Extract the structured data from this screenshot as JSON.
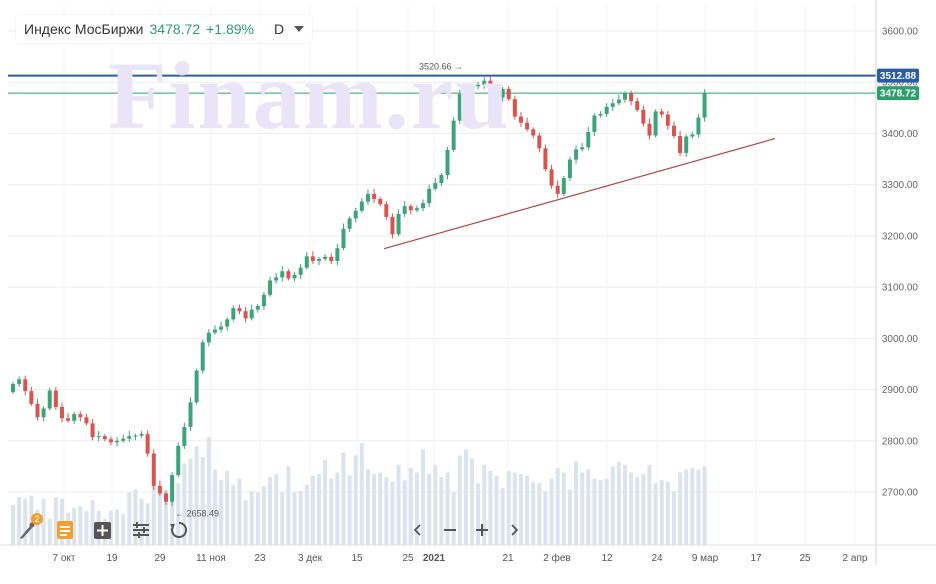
{
  "legend": {
    "ticker": "Индекс МосБиржи",
    "price": "3478.72",
    "change": "+1.89%",
    "timeframe": "D"
  },
  "watermark": "Finam.ru",
  "toolbar": {
    "badge_count": "2"
  },
  "colors": {
    "up": "#3fa37a",
    "down": "#d9534f",
    "volume": "#dbe3ee",
    "resistance_line": "#2b5ca8",
    "price_line": "#2e9e6e",
    "trend_line": "#b0474a"
  },
  "chart_data": {
    "type": "candlestick",
    "title": "Индекс МосБиржи",
    "timeframe": "D",
    "y_axis": {
      "range": [
        2620,
        3640
      ],
      "ticks": [
        "3600.00",
        "3500.00",
        "3400.00",
        "3300.00",
        "3200.00",
        "3100.00",
        "3000.00",
        "2900.00",
        "2800.00",
        "2700.00"
      ]
    },
    "x_axis": {
      "ticks": [
        "7 окт",
        "19",
        "29",
        "11 ноя",
        "23",
        "3 дек",
        "15",
        "25",
        "2021",
        "21",
        "2 фев",
        "12",
        "24",
        "9 мар",
        "17",
        "25",
        "2 апр"
      ]
    },
    "last_price": 3478.72,
    "resistance_level": 3512.88,
    "price_labels": {
      "resistance": "3512.88",
      "last": "3478.72"
    },
    "annotations": [
      {
        "text": "3520.66",
        "value": 3520.66
      },
      {
        "text": "2658.49",
        "value": 2658.49
      }
    ],
    "trend_line": {
      "from": [
        "15 дек",
        3175
      ],
      "to": [
        "17 мар",
        3390
      ]
    },
    "candles_close": [
      2911,
      2920,
      2897,
      2872,
      2846,
      2863,
      2898,
      2866,
      2844,
      2839,
      2852,
      2846,
      2834,
      2807,
      2809,
      2803,
      2797,
      2800,
      2804,
      2809,
      2810,
      2813,
      2775,
      2712,
      2697,
      2681,
      2733,
      2790,
      2827,
      2875,
      2937,
      2992,
      3011,
      3017,
      3023,
      3037,
      3059,
      3053,
      3039,
      3056,
      3063,
      3085,
      3113,
      3119,
      3131,
      3117,
      3124,
      3138,
      3160,
      3151,
      3155,
      3159,
      3151,
      3176,
      3214,
      3234,
      3249,
      3267,
      3282,
      3272,
      3262,
      3237,
      3203,
      3243,
      3258,
      3250,
      3254,
      3264,
      3292,
      3303,
      3319,
      3368,
      3425,
      3477,
      3471,
      3492,
      3495,
      3503,
      3486,
      3470,
      3487,
      3467,
      3433,
      3421,
      3408,
      3396,
      3371,
      3330,
      3298,
      3282,
      3313,
      3349,
      3369,
      3373,
      3403,
      3435,
      3438,
      3452,
      3459,
      3466,
      3478,
      3463,
      3446,
      3419,
      3396,
      3443,
      3437,
      3415,
      3395,
      3362,
      3394,
      3398,
      3431,
      3478
    ],
    "volume": [
      26,
      31,
      30,
      32,
      23,
      30,
      17,
      31,
      30,
      21,
      24,
      25,
      22,
      29,
      22,
      17,
      22,
      23,
      20,
      34,
      36,
      30,
      27,
      44,
      33,
      36,
      45,
      40,
      53,
      56,
      64,
      57,
      70,
      49,
      42,
      48,
      39,
      43,
      29,
      35,
      34,
      38,
      44,
      46,
      34,
      51,
      34,
      35,
      39,
      45,
      46,
      55,
      43,
      47,
      60,
      45,
      58,
      66,
      49,
      46,
      47,
      44,
      41,
      52,
      42,
      50,
      47,
      62,
      46,
      52,
      44,
      47,
      34,
      58,
      62,
      56,
      40,
      52,
      48,
      45,
      37,
      48,
      47,
      46,
      45,
      41,
      40,
      35,
      43,
      50,
      47,
      36,
      54,
      47,
      49,
      43,
      42,
      43,
      51,
      54,
      52,
      47,
      44,
      46,
      52,
      40,
      42,
      41,
      35,
      47,
      49,
      50,
      49,
      51
    ]
  }
}
